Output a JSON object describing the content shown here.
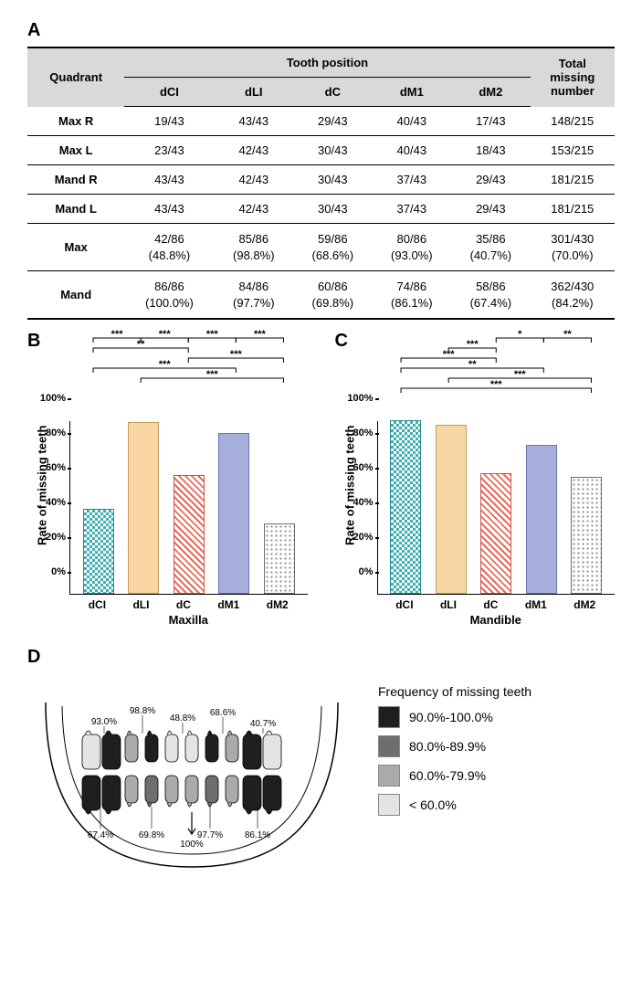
{
  "panels": {
    "A": "A",
    "B": "B",
    "C": "C",
    "D": "D"
  },
  "table": {
    "corner": "Quadrant",
    "tooth_pos_header": "Tooth position",
    "total_header_line1": "Total",
    "total_header_line2": "missing",
    "total_header_line3": "number",
    "cols": [
      "dCI",
      "dLI",
      "dC",
      "dM1",
      "dM2"
    ],
    "rows": [
      {
        "name": "Max R",
        "cells": [
          "19/43",
          "43/43",
          "29/43",
          "40/43",
          "17/43"
        ],
        "total": "148/215"
      },
      {
        "name": "Max L",
        "cells": [
          "23/43",
          "42/43",
          "30/43",
          "40/43",
          "18/43"
        ],
        "total": "153/215"
      },
      {
        "name": "Mand R",
        "cells": [
          "43/43",
          "42/43",
          "30/43",
          "37/43",
          "29/43"
        ],
        "total": "181/215"
      },
      {
        "name": "Mand L",
        "cells": [
          "43/43",
          "42/43",
          "30/43",
          "37/43",
          "29/43"
        ],
        "total": "181/215"
      },
      {
        "name": "Max",
        "cells_top": [
          "42/86",
          "85/86",
          "59/86",
          "80/86",
          "35/86"
        ],
        "cells_bot": [
          "(48.8%)",
          "(98.8%)",
          "(68.6%)",
          "(93.0%)",
          "(40.7%)"
        ],
        "total_top": "301/430",
        "total_bot": "(70.0%)"
      },
      {
        "name": "Mand",
        "cells_top": [
          "86/86",
          "84/86",
          "60/86",
          "74/86",
          "58/86"
        ],
        "cells_bot": [
          "(100.0%)",
          "(97.7%)",
          "(69.8%)",
          "(86.1%)",
          "(67.4%)"
        ],
        "total_top": "362/430",
        "total_bot": "(84.2%)"
      }
    ]
  },
  "charts": {
    "y_label": "Rate of missing teeth",
    "y_ticks": [
      "0%",
      "20%",
      "40%",
      "60%",
      "80%",
      "100%"
    ],
    "y_tick_vals": [
      0,
      20,
      40,
      60,
      80,
      100
    ],
    "categories": [
      "dCI",
      "dLI",
      "dC",
      "dM1",
      "dM2"
    ],
    "patterns": [
      "pat-check",
      "pat-solid1",
      "pat-hatch",
      "pat-solid2",
      "pat-dots"
    ],
    "B": {
      "x_title": "Maxilla",
      "values": [
        48.8,
        98.8,
        68.6,
        93.0,
        40.7
      ],
      "sig": [
        {
          "i": 0,
          "j": 1,
          "level": 6,
          "label": "***"
        },
        {
          "i": 0,
          "j": 2,
          "level": 5,
          "label": "**"
        },
        {
          "i": 0,
          "j": 3,
          "level": 3,
          "label": "***"
        },
        {
          "i": 1,
          "j": 2,
          "level": 6,
          "label": "***"
        },
        {
          "i": 1,
          "j": 4,
          "level": 2,
          "label": "***"
        },
        {
          "i": 2,
          "j": 3,
          "level": 6,
          "label": "***"
        },
        {
          "i": 2,
          "j": 4,
          "level": 4,
          "label": "***"
        },
        {
          "i": 3,
          "j": 4,
          "level": 6,
          "label": "***"
        }
      ]
    },
    "C": {
      "x_title": "Mandible",
      "values": [
        100.0,
        97.7,
        69.8,
        86.1,
        67.4
      ],
      "sig": [
        {
          "i": 0,
          "j": 2,
          "level": 4,
          "label": "***"
        },
        {
          "i": 0,
          "j": 3,
          "level": 3,
          "label": "**"
        },
        {
          "i": 0,
          "j": 4,
          "level": 1,
          "label": "***"
        },
        {
          "i": 1,
          "j": 2,
          "level": 5,
          "label": "***"
        },
        {
          "i": 1,
          "j": 4,
          "level": 2,
          "label": "***"
        },
        {
          "i": 2,
          "j": 3,
          "level": 6,
          "label": "*"
        },
        {
          "i": 3,
          "j": 4,
          "level": 6,
          "label": "**"
        }
      ]
    }
  },
  "jaw": {
    "legend_title": "Frequency of missing teeth",
    "legend": [
      {
        "label": "90.0%-100.0%",
        "color": "#1f1f1f"
      },
      {
        "label": "80.0%-89.9%",
        "color": "#6e6e6e"
      },
      {
        "label": "60.0%-79.9%",
        "color": "#aaaaaa"
      },
      {
        "label": "< 60.0%",
        "color": "#e4e4e4"
      }
    ],
    "upper": [
      {
        "name": "dM2",
        "pct": 40.7,
        "shade": "#e4e4e4"
      },
      {
        "name": "dM1",
        "pct": 93.0,
        "shade": "#1f1f1f"
      },
      {
        "name": "dC",
        "pct": 68.6,
        "shade": "#aaaaaa"
      },
      {
        "name": "dLI",
        "pct": 98.8,
        "shade": "#1f1f1f"
      },
      {
        "name": "dCI",
        "pct": 48.8,
        "shade": "#e4e4e4"
      }
    ],
    "lower": [
      {
        "name": "dM2",
        "pct": 67.4,
        "shade": "#aaaaaa"
      },
      {
        "name": "dM1",
        "pct": 86.1,
        "shade": "#6e6e6e"
      },
      {
        "name": "dC",
        "pct": 69.8,
        "shade": "#aaaaaa"
      },
      {
        "name": "dLI",
        "pct": 97.7,
        "shade": "#1f1f1f"
      },
      {
        "name": "dCI",
        "pct": 100.0,
        "shade": "#1f1f1f"
      }
    ],
    "labels_upper": [
      "93.0%",
      "98.8%",
      "48.8%",
      "68.6%",
      "40.7%"
    ],
    "labels_lower": [
      "67.4%",
      "69.8%",
      "97.7%",
      "86.1%"
    ],
    "label_center_lower": "100%"
  }
}
